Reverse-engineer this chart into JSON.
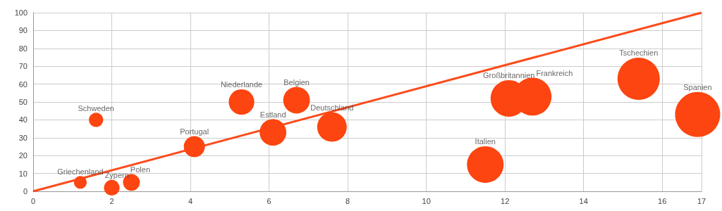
{
  "chart_data": {
    "type": "bubble",
    "xlim": [
      0,
      17
    ],
    "xticks": [
      0,
      2,
      4,
      6,
      8,
      10,
      12,
      14,
      16,
      17
    ],
    "ylim": [
      0,
      100
    ],
    "yticks": [
      0,
      10,
      20,
      30,
      40,
      50,
      60,
      70,
      80,
      90,
      100
    ],
    "grid": true,
    "series": [
      {
        "color": "#fc4510",
        "x": [
          1.2,
          2.0,
          2.5,
          1.6,
          4.1,
          5.3,
          6.1,
          6.7,
          7.6,
          11.5,
          12.1,
          12.7,
          15.4,
          16.9
        ],
        "values": [
          5,
          2,
          5,
          40,
          25,
          50,
          33,
          51,
          36,
          15,
          52,
          53,
          63,
          43
        ],
        "sizes": [
          0.08,
          0.12,
          0.14,
          0.1,
          0.22,
          0.32,
          0.35,
          0.35,
          0.43,
          0.66,
          0.66,
          0.71,
          0.88,
          1
        ]
      },
      {
        "type": "line",
        "color": "#fc4a1a",
        "x": [
          0,
          17
        ],
        "values": [
          0,
          100
        ],
        "marker": "none"
      }
    ],
    "annotations": [
      {
        "text": "Griechenland",
        "x": 1.2,
        "y": 5
      },
      {
        "text": "Zypern",
        "x": 2.0,
        "y": 2
      },
      {
        "text": "Polen",
        "x": 2.5,
        "y": 5
      },
      {
        "text": "Schweden",
        "x": 1.6,
        "y": 40
      },
      {
        "text": "Portugal",
        "x": 4.1,
        "y": 25
      },
      {
        "text": "Niederlande",
        "x": 5.3,
        "y": 50
      },
      {
        "text": "Estland",
        "x": 6.1,
        "y": 33
      },
      {
        "text": "Belgien",
        "x": 6.7,
        "y": 51
      },
      {
        "text": "Deutschland",
        "x": 7.6,
        "y": 36
      },
      {
        "text": "Italien",
        "x": 11.5,
        "y": 15
      },
      {
        "text": "Großbritannien",
        "x": 12.1,
        "y": 52
      },
      {
        "text": "Frankreich",
        "x": 12.7,
        "y": 53
      },
      {
        "text": "Tschechien",
        "x": 15.4,
        "y": 63
      },
      {
        "text": "Spanien",
        "x": 16.9,
        "y": 43
      }
    ]
  }
}
